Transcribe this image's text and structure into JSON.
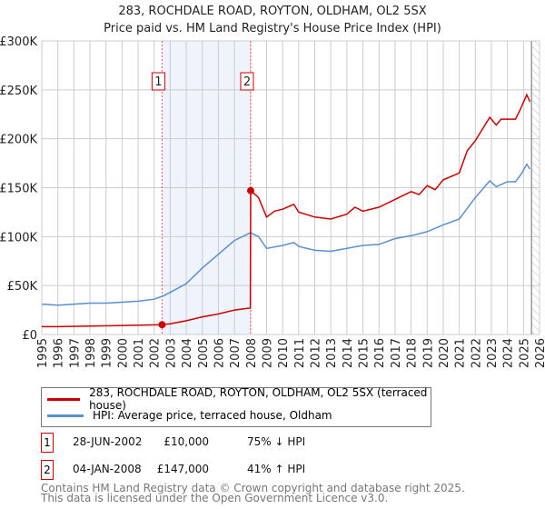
{
  "title": "283, ROCHDALE ROAD, ROYTON, OLDHAM, OL2 5SX",
  "subtitle": "Price paid vs. HM Land Registry's House Price Index (HPI)",
  "chart_data": {
    "type": "line",
    "title": "283, ROCHDALE ROAD, ROYTON, OLDHAM, OL2 5SX",
    "subtitle": "Price paid vs. HM Land Registry's House Price Index (HPI)",
    "xlim": [
      1995,
      2026
    ],
    "ylim": [
      0,
      300000
    ],
    "x_ticks": [
      "1995",
      "1996",
      "1997",
      "1998",
      "1999",
      "2000",
      "2001",
      "2002",
      "2003",
      "2004",
      "2005",
      "2006",
      "2007",
      "2008",
      "2009",
      "2010",
      "2011",
      "2012",
      "2013",
      "2014",
      "2015",
      "2016",
      "2017",
      "2018",
      "2019",
      "2020",
      "2021",
      "2022",
      "2023",
      "2024",
      "2025",
      "2026"
    ],
    "y_ticks": [
      {
        "v": 0,
        "label": "£0"
      },
      {
        "v": 50000,
        "label": "£50K"
      },
      {
        "v": 100000,
        "label": "£100K"
      },
      {
        "v": 150000,
        "label": "£150K"
      },
      {
        "v": 200000,
        "label": "£200K"
      },
      {
        "v": 250000,
        "label": "£250K"
      },
      {
        "v": 300000,
        "label": "£300K"
      }
    ],
    "grid": true,
    "shaded_period": [
      2002.49,
      2008.01
    ],
    "forecast_hatch_from": 2025.5,
    "series": [
      {
        "name": "283, ROCHDALE ROAD, ROYTON, OLDHAM, OL2 5SX (terraced house)",
        "color": "#cc0000",
        "x": [
          1995,
          1996,
          1998,
          2002.49,
          2003,
          2004,
          2005,
          2006,
          2007,
          2007.99,
          2008.01,
          2008.5,
          2009,
          2009.5,
          2010,
          2010.7,
          2011,
          2012,
          2013,
          2014,
          2014.5,
          2015,
          2016,
          2017,
          2018,
          2018.5,
          2019,
          2019.5,
          2020,
          2021,
          2021.5,
          2022,
          2022.9,
          2023.3,
          2023.6,
          2024.5,
          2024.8,
          2025.2,
          2025.4
        ],
        "y": [
          8000,
          8000,
          8500,
          10000,
          11000,
          14000,
          18000,
          21000,
          25000,
          27000,
          147000,
          140000,
          120000,
          126000,
          128000,
          133000,
          125000,
          120000,
          118000,
          123000,
          130000,
          126000,
          130000,
          138000,
          146000,
          143000,
          152000,
          148000,
          158000,
          165000,
          188000,
          198000,
          222000,
          214000,
          220000,
          220000,
          230000,
          245000,
          238000
        ]
      },
      {
        "name": "HPI: Average price, terraced house, Oldham",
        "color": "#5b8fd0",
        "x": [
          1995,
          1996,
          1997,
          1998,
          1999,
          2000,
          2001,
          2002,
          2002.5,
          2003,
          2004,
          2005,
          2006,
          2007,
          2008,
          2008.5,
          2009,
          2010,
          2010.7,
          2011,
          2012,
          2013,
          2014,
          2015,
          2016,
          2017,
          2018,
          2019,
          2020,
          2021,
          2022,
          2022.9,
          2023.3,
          2024,
          2024.5,
          2024.9,
          2025.2,
          2025.4
        ],
        "y": [
          31000,
          30000,
          31000,
          32000,
          32000,
          33000,
          34000,
          36000,
          39000,
          43000,
          52000,
          68000,
          82000,
          96000,
          104000,
          100000,
          88000,
          91000,
          94000,
          90000,
          86000,
          85000,
          88000,
          91000,
          92000,
          98000,
          101000,
          105000,
          112000,
          118000,
          140000,
          157000,
          151000,
          156000,
          156000,
          165000,
          174000,
          169000
        ]
      }
    ],
    "sales": [
      {
        "id": "1",
        "x": 2002.49,
        "y": 10000
      },
      {
        "id": "2",
        "x": 2008.01,
        "y": 147000
      }
    ]
  },
  "legend": {
    "red": "283, ROCHDALE ROAD, ROYTON, OLDHAM, OL2 5SX (terraced house)",
    "blue": "HPI: Average price, terraced house, Oldham"
  },
  "transactions": [
    {
      "id": "1",
      "date": "28-JUN-2002",
      "price": "£10,000",
      "hpi": "75% ↓ HPI"
    },
    {
      "id": "2",
      "date": "04-JAN-2008",
      "price": "£147,000",
      "hpi": "41% ↑ HPI"
    }
  ],
  "footer": [
    "Contains HM Land Registry data © Crown copyright and database right 2025.",
    "This data is licensed under the Open Government Licence v3.0."
  ]
}
